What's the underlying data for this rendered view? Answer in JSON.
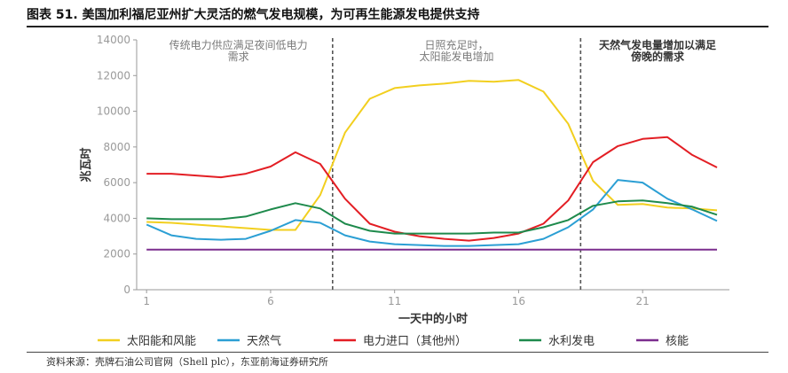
{
  "figure": {
    "title": "图表 51. 美国加利福尼亚州扩大灵活的燃气发电规模，为可再生能源发电提供支持",
    "source": "资料来源：壳牌石油公司官网（Shell plc），东亚前海证券研究所"
  },
  "chart_data": {
    "type": "line",
    "xlabel": "一天中的小时",
    "ylabel": "兆瓦时",
    "x": [
      1,
      2,
      3,
      4,
      5,
      6,
      7,
      8,
      9,
      10,
      11,
      12,
      13,
      14,
      15,
      16,
      17,
      18,
      19,
      20,
      21,
      22,
      23,
      24
    ],
    "xticks": [
      1,
      6,
      11,
      16,
      21
    ],
    "xlim": [
      0.6,
      24.5
    ],
    "ylim": [
      0,
      14000
    ],
    "yticks": [
      0,
      2000,
      4000,
      6000,
      8000,
      10000,
      12000,
      14000
    ],
    "ytick_labels": [
      "0",
      "2000",
      "4000",
      "6000",
      "8000",
      "10000",
      "12000",
      "14000"
    ],
    "grid": false,
    "legend_position": "bottom",
    "dividers": [
      8.5,
      18.5
    ],
    "annotations": [
      {
        "lines": [
          "传统电力供应满足夜间低电力",
          "需求"
        ],
        "x": 4.7,
        "y": [
          13700,
          13050
        ],
        "bold": false
      },
      {
        "lines": [
          "日照充足时，",
          "太阳能发电增加"
        ],
        "x": 13.5,
        "y": [
          13700,
          13050
        ],
        "bold": false
      },
      {
        "lines": [
          "天然气发电量增加以满足",
          "傍晚的需求"
        ],
        "x": 21.6,
        "y": [
          13700,
          13050
        ],
        "bold": true
      }
    ],
    "series": [
      {
        "name": "太阳能和风能",
        "color": "#f2cf1f",
        "values": [
          3800,
          3750,
          3650,
          3550,
          3450,
          3350,
          3350,
          5300,
          8800,
          10700,
          11300,
          11450,
          11550,
          11700,
          11650,
          11750,
          11100,
          9300,
          6100,
          4750,
          4800,
          4600,
          4550,
          4450
        ]
      },
      {
        "name": "天然气",
        "color": "#2b9fd4",
        "values": [
          3650,
          3050,
          2850,
          2800,
          2850,
          3300,
          3900,
          3750,
          3050,
          2700,
          2550,
          2500,
          2450,
          2450,
          2500,
          2550,
          2850,
          3500,
          4500,
          6150,
          6000,
          5100,
          4500,
          3850
        ]
      },
      {
        "name": "电力进口（其他州）",
        "color": "#e31e24",
        "values": [
          6500,
          6500,
          6400,
          6300,
          6500,
          6900,
          7700,
          7050,
          5100,
          3700,
          3250,
          3000,
          2850,
          2750,
          2900,
          3150,
          3700,
          5000,
          7150,
          8050,
          8450,
          8550,
          7550,
          6850
        ]
      },
      {
        "name": "水利发电",
        "color": "#1e8a4c",
        "values": [
          4000,
          3950,
          3950,
          3950,
          4100,
          4500,
          4850,
          4550,
          3700,
          3300,
          3150,
          3150,
          3150,
          3150,
          3200,
          3200,
          3500,
          3900,
          4700,
          4950,
          5000,
          4850,
          4650,
          4200
        ]
      },
      {
        "name": "核能",
        "color": "#7b2d8e",
        "values": [
          2250,
          2250,
          2250,
          2250,
          2250,
          2250,
          2250,
          2250,
          2250,
          2250,
          2250,
          2250,
          2250,
          2250,
          2250,
          2250,
          2250,
          2250,
          2250,
          2250,
          2250,
          2250,
          2250,
          2250
        ]
      }
    ]
  }
}
